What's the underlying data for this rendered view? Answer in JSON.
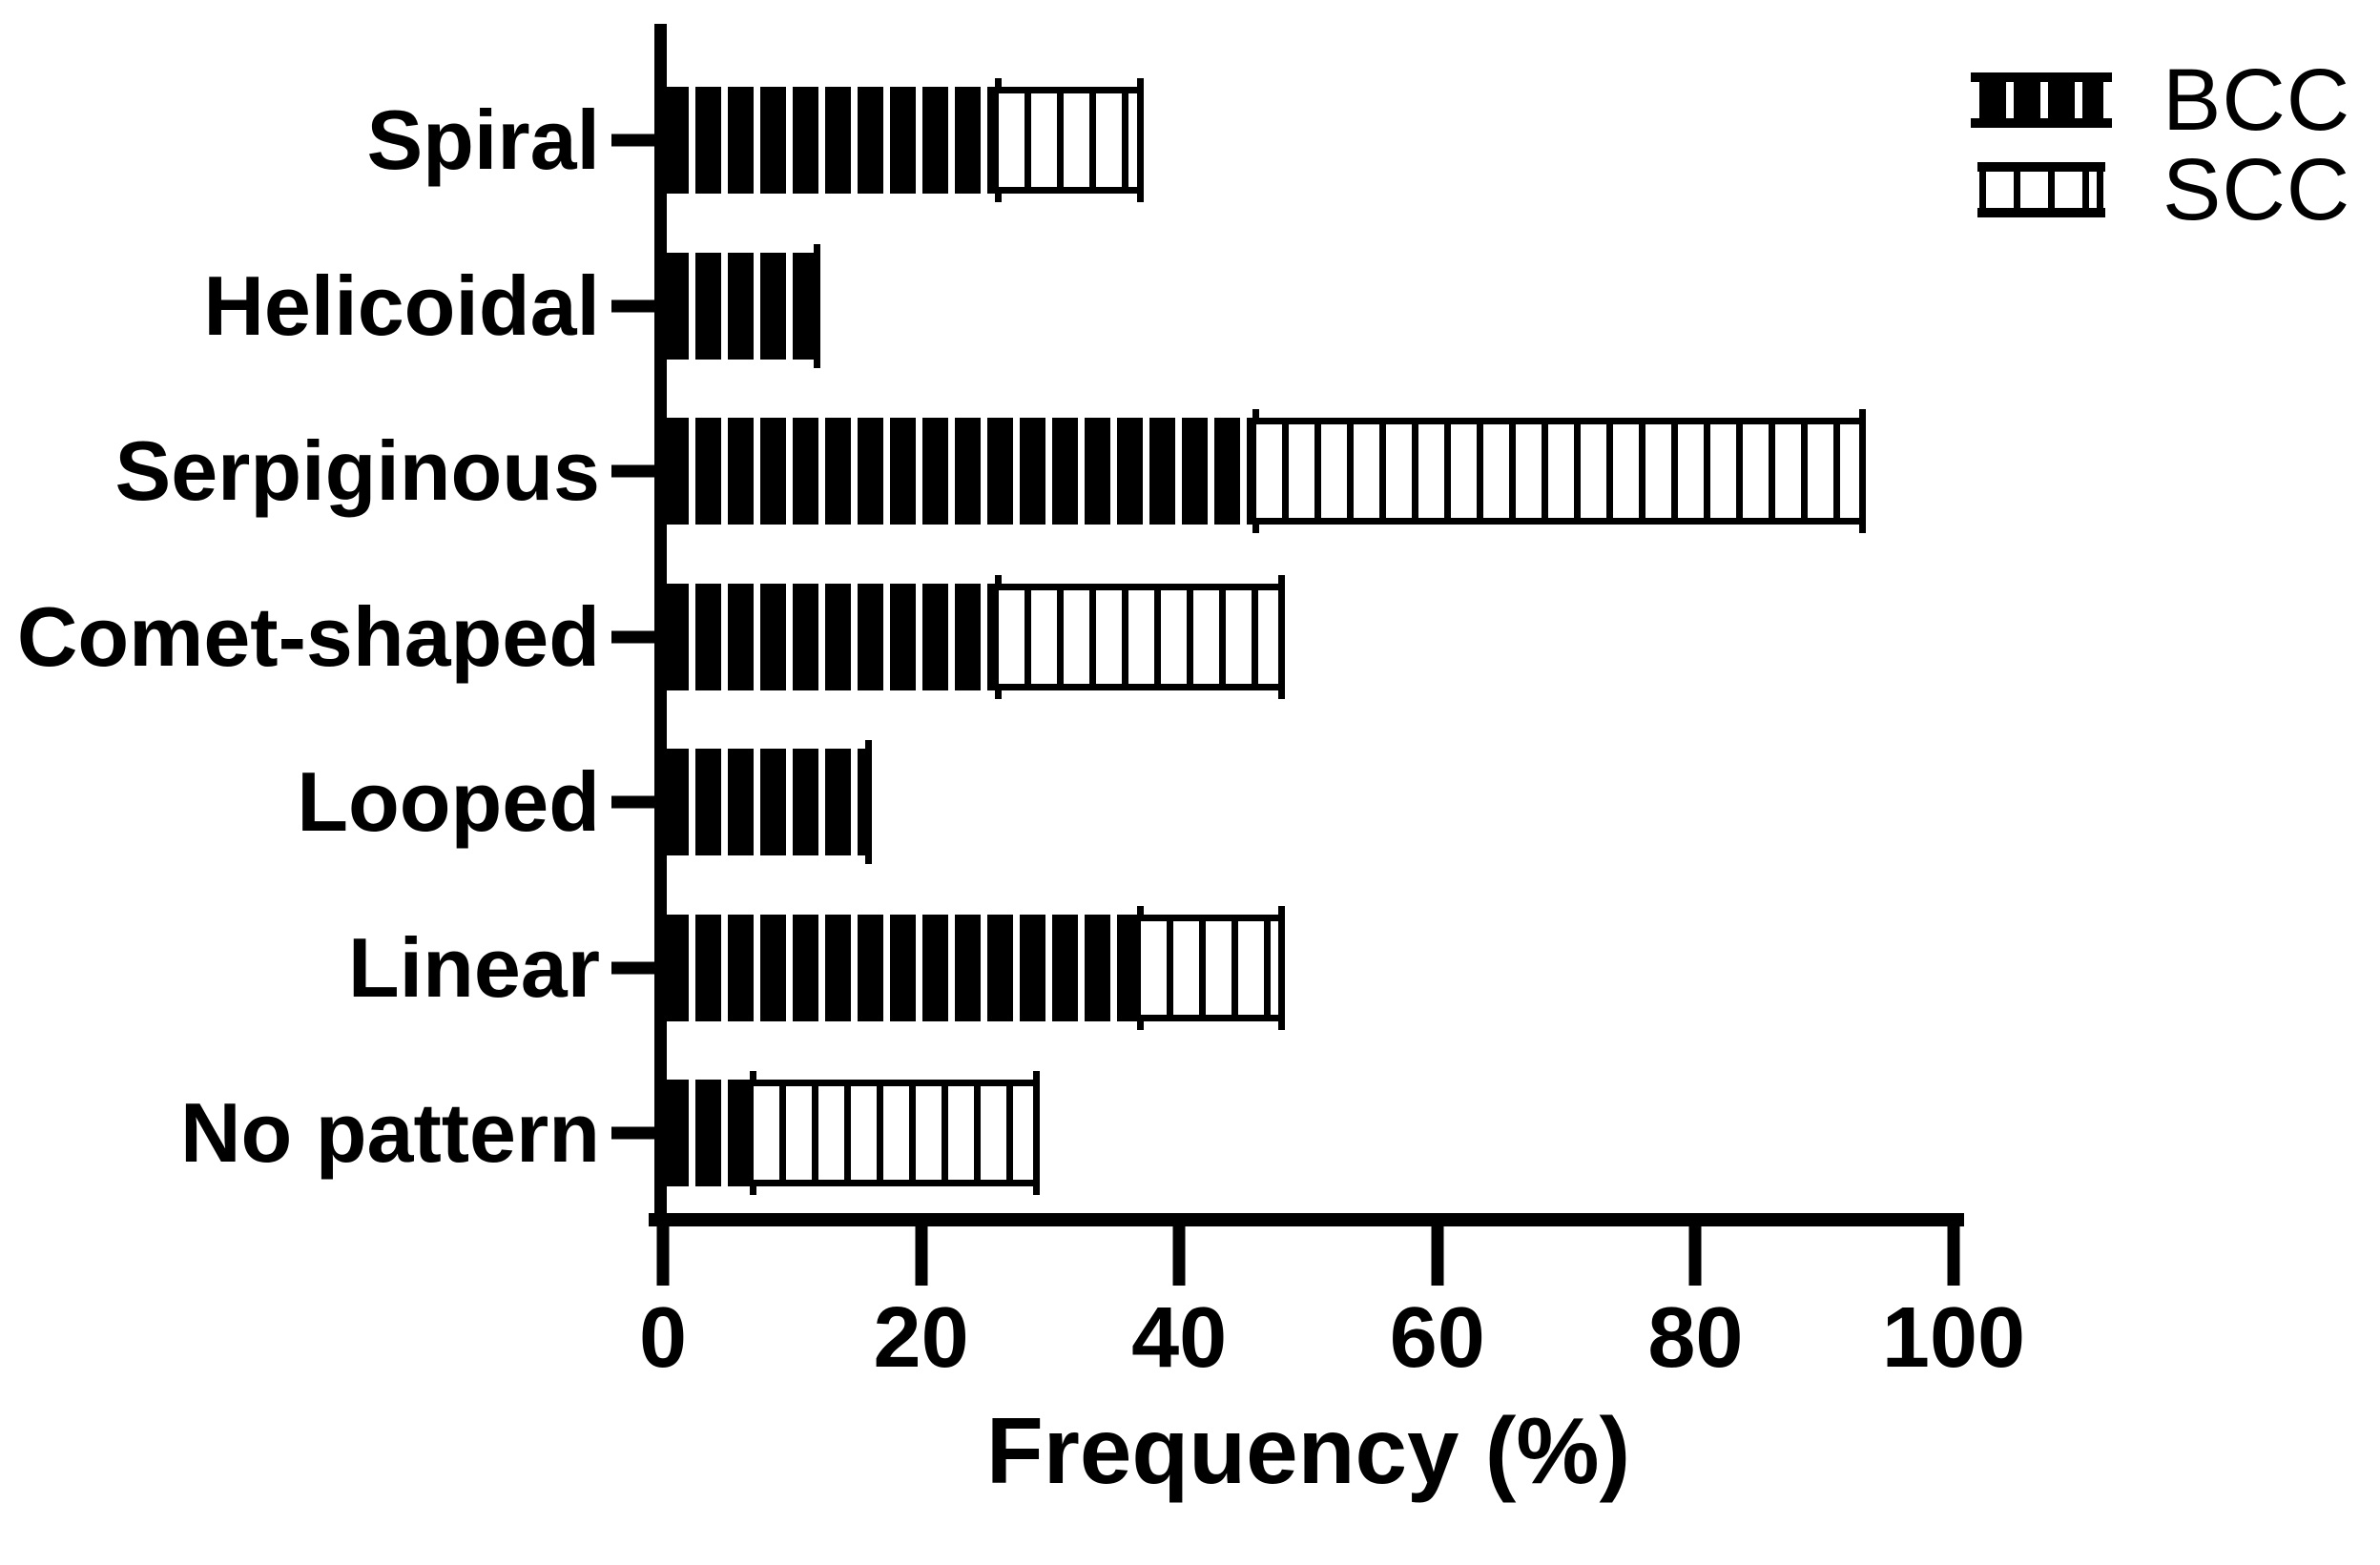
{
  "figure": {
    "background": "#ffffff",
    "ink": "#000000"
  },
  "chart_data": {
    "type": "bar",
    "orientation": "horizontal",
    "stacked": true,
    "xlabel": "Frequency (%)",
    "xlim": [
      0,
      100
    ],
    "xticks": [
      "0",
      "20",
      "40",
      "60",
      "80",
      "100"
    ],
    "grid": false,
    "legend_position": "top-right",
    "categories": [
      "Spiral",
      "Helicoidal",
      "Serpiginous",
      "Comet-shaped",
      "Looped",
      "Linear",
      "No pattern"
    ],
    "series": [
      {
        "name": "BCC",
        "pattern": "black fill with white vertical hatching",
        "values": [
          26,
          12,
          46,
          26,
          16,
          37,
          7
        ]
      },
      {
        "name": "SCC",
        "pattern": "white fill with black vertical hatching",
        "values": [
          11,
          0,
          47,
          22,
          0,
          11,
          22
        ]
      }
    ]
  }
}
